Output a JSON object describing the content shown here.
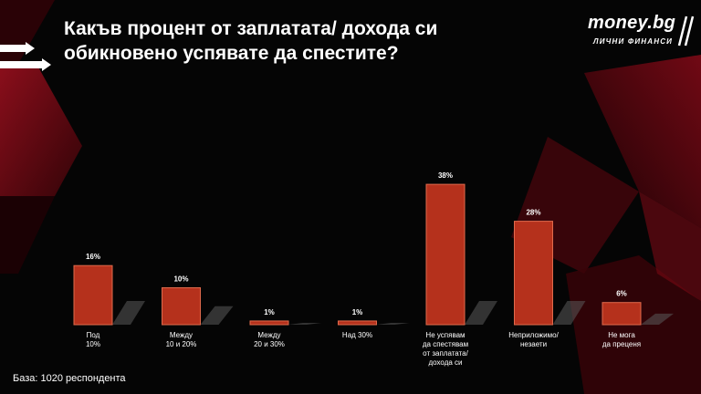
{
  "header": {
    "title": "Какъв процент от заплатата/ дохода си обикновено успявате да спестите?"
  },
  "logo": {
    "text": "money.bg",
    "subtext": "ЛИЧНИ ФИНАНСИ"
  },
  "footer": {
    "base_note": "База:  1020 респондента"
  },
  "colors": {
    "bar": "#b5311c",
    "bar_top": "#cf4a30",
    "bar_edge": "#e06a4c",
    "accent_red": "#9a0c1c",
    "background": "#050505"
  },
  "chart_data": {
    "type": "bar",
    "title": "Какъв процент от заплатата/ дохода си обикновено успявате да спестите?",
    "categories": [
      [
        "Под",
        "10%"
      ],
      [
        "Между",
        "10 и 20%"
      ],
      [
        "Между",
        "20 и 30%"
      ],
      [
        "Над 30%"
      ],
      [
        "Не успявам",
        "да спестявам",
        "от заплатата/",
        "дохода си"
      ],
      [
        "Неприложимо/",
        "незаети"
      ],
      [
        "Не мога",
        "да преценя"
      ]
    ],
    "values": [
      16,
      10,
      1,
      1,
      38,
      28,
      6
    ],
    "value_labels": [
      "16%",
      "10%",
      "1%",
      "1%",
      "38%",
      "28%",
      "6%"
    ],
    "ylim": [
      0,
      40
    ],
    "grid": false,
    "legend": "none"
  }
}
